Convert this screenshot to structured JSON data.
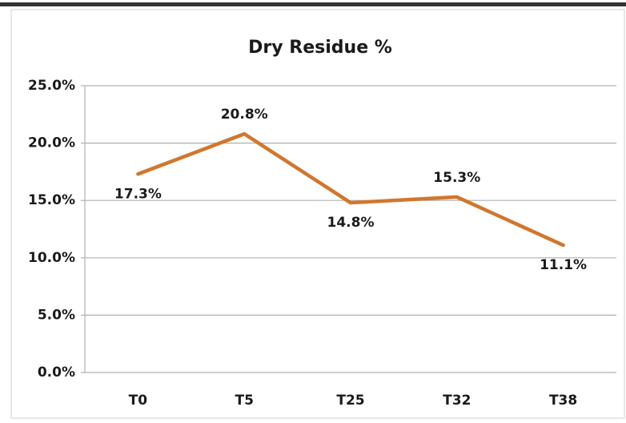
{
  "chart_data": {
    "type": "line",
    "title": "Dry Residue %",
    "categories": [
      "T0",
      "T5",
      "T25",
      "T32",
      "T38"
    ],
    "series": [
      {
        "name": "Dry Residue %",
        "color": "#d0772f",
        "values": [
          17.3,
          20.8,
          14.8,
          15.3,
          11.1
        ],
        "value_labels": [
          "17.3%",
          "20.8%",
          "14.8%",
          "15.3%",
          "11.1%"
        ]
      }
    ],
    "ylim": [
      0,
      25
    ],
    "yticks": [
      {
        "value": 0,
        "label": "0.0%"
      },
      {
        "value": 5,
        "label": "5.0%"
      },
      {
        "value": 10,
        "label": "10.0%"
      },
      {
        "value": 15,
        "label": "15.0%"
      },
      {
        "value": 20,
        "label": "20.0%"
      },
      {
        "value": 25,
        "label": "25.0%"
      }
    ],
    "grid": true
  }
}
